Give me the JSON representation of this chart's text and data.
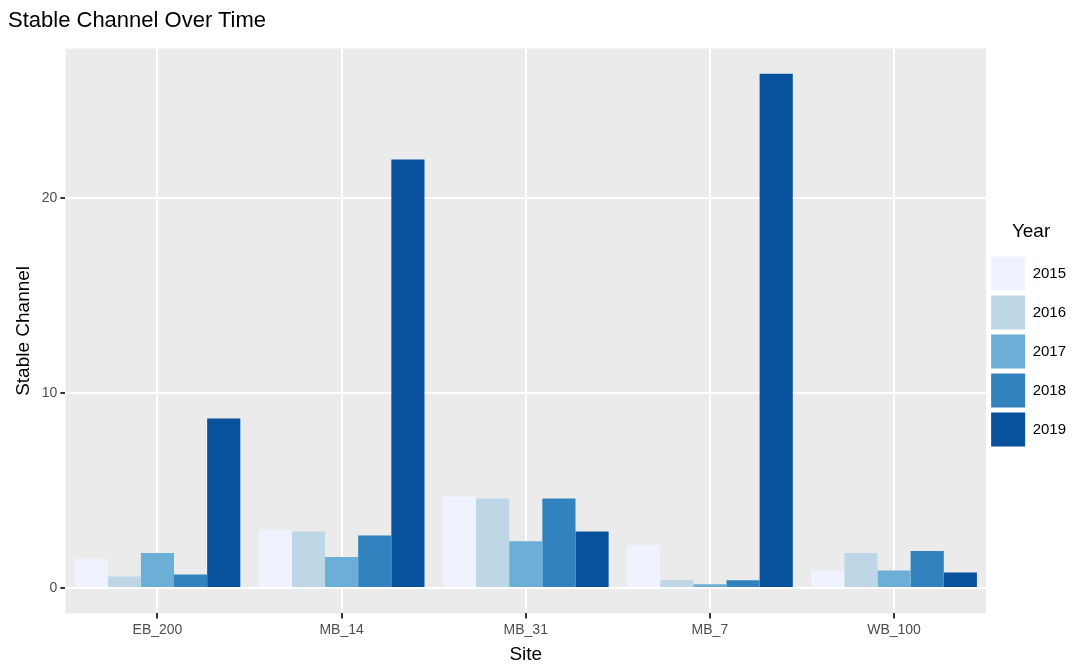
{
  "chart_data": {
    "type": "bar",
    "title": "Stable Channel Over Time",
    "xlabel": "Site",
    "ylabel": "Stable Channel",
    "legend_title": "Year",
    "categories": [
      "EB_200",
      "MB_14",
      "MB_31",
      "MB_7",
      "WB_100"
    ],
    "series": [
      {
        "name": "2015",
        "color": "#eff3ff",
        "values": [
          1.5,
          3.0,
          4.7,
          2.2,
          0.9
        ]
      },
      {
        "name": "2016",
        "color": "#bdd7e7",
        "values": [
          0.6,
          2.9,
          4.6,
          0.4,
          1.8
        ]
      },
      {
        "name": "2017",
        "color": "#6baed6",
        "values": [
          1.8,
          1.6,
          2.4,
          0.2,
          0.9
        ]
      },
      {
        "name": "2018",
        "color": "#3182bd",
        "values": [
          0.7,
          2.7,
          4.6,
          0.4,
          1.9
        ]
      },
      {
        "name": "2019",
        "color": "#08519c",
        "values": [
          8.7,
          22.0,
          2.9,
          26.4,
          0.8
        ]
      }
    ],
    "ylim": [
      -1.3,
      27.7
    ],
    "yticks": [
      0,
      10,
      20
    ],
    "grid": true,
    "legend": "right"
  }
}
